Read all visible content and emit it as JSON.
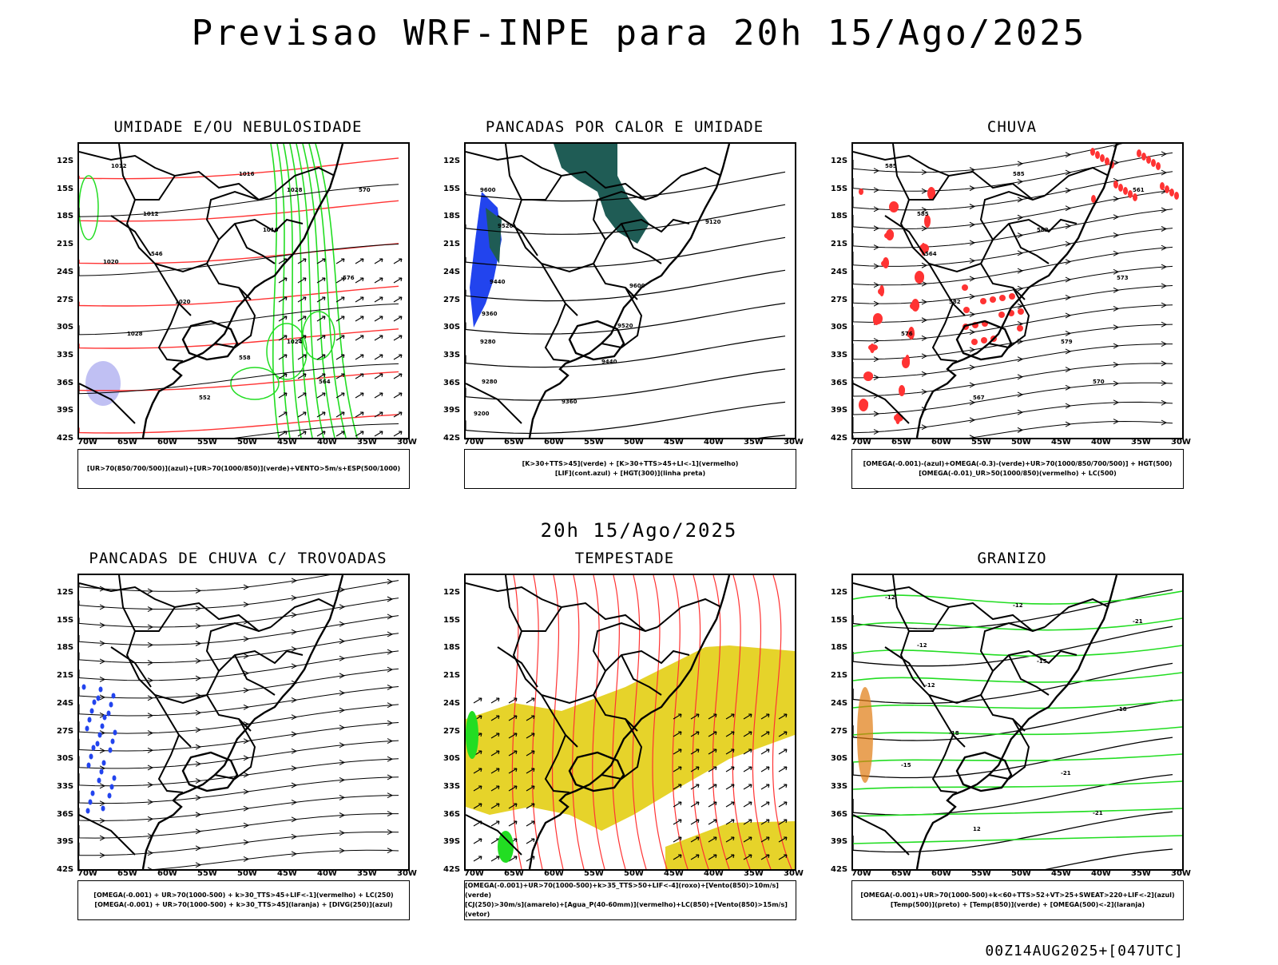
{
  "title": "Previsao WRF-INPE  para 20h 15/Ago/2025",
  "mid_time": "20h 15/Ago/2025",
  "footer": "00Z14AUG2025+[047UTC]",
  "axes": {
    "lat_labels": [
      "12S",
      "15S",
      "18S",
      "21S",
      "24S",
      "27S",
      "30S",
      "33S",
      "36S",
      "39S",
      "42S"
    ],
    "lon_labels": [
      "70W",
      "65W",
      "60W",
      "55W",
      "50W",
      "45W",
      "40W",
      "35W",
      "30W"
    ]
  },
  "colors": {
    "black": "#000000",
    "red": "#ff3333",
    "green": "#22dd22",
    "blue": "#2244ee",
    "lightblue": "#b0b0f0",
    "yellow": "#e6d32a",
    "darkteal": "#1f5c55",
    "orange": "#e07a10"
  },
  "chart_data": [
    {
      "type": "heatmap",
      "title": "UMIDADE E/OU NEBULOSIDADE",
      "legend_lines": [
        "[UR>70(850/700/500)](azul)+[UR>70(1000/850)](verde)+VENTO>5m/s+ESP(500/1000)"
      ],
      "labels": [
        "1012",
        "1012",
        "1016",
        "1016",
        "1020",
        "1024",
        "1028",
        "576",
        "564",
        "552",
        "546",
        "570",
        "558",
        "1020",
        "1028"
      ]
    },
    {
      "type": "heatmap",
      "title": "PANCADAS POR CALOR E UMIDADE",
      "legend_lines": [
        "[K>30+TTS>45](verde) + [K>30+TTS>45+LI<-1](vermelho)",
        "[LIF](cont.azul) + [HGT(300)](linha preta)"
      ],
      "labels": [
        "9600",
        "9520",
        "9440",
        "9360",
        "9280",
        "9200",
        "9120",
        "9600",
        "9520",
        "9440",
        "9360",
        "9280"
      ]
    },
    {
      "type": "heatmap",
      "title": "CHUVA",
      "legend_lines": [
        "[OMEGA(-0.001)-(azul)+OMEGA(-0.3)-(verde)+UR>70(1000/850/700/500)] + HGT(500)",
        "[OMEGA(-0.01)_UR>50(1000/850)(vermelho) + LC(500)"
      ],
      "labels": [
        "585",
        "585",
        "585",
        "582",
        "582",
        "579",
        "576",
        "573",
        "570",
        "567",
        "564",
        "561"
      ]
    },
    {
      "type": "heatmap",
      "title": "PANCADAS DE CHUVA C/ TROVOADAS",
      "legend_lines": [
        "[OMEGA(-0.001) + UR>70(1000-500) + k>30_TTS>45+LIF<-1](vermelho) + LC(250)",
        "[OMEGA(-0.001) + UR>70(1000-500) + k>30_TTS>45](laranja) + [DIVG(250)](azul)"
      ],
      "labels": []
    },
    {
      "type": "heatmap",
      "title": "TEMPESTADE",
      "legend_lines": [
        "[OMEGA(-0.001)+UR>70(1000-500)+k>35_TTS>50+LIF<-4](roxo)+[Vento(850)>10m/s](verde)",
        "[CJ(250)>30m/s](amarelo)+[Agua_P(40-60mm)](vermelho)+LC(850)+[Vento(850)>15m/s](vetor)"
      ],
      "labels": []
    },
    {
      "type": "heatmap",
      "title": "GRANIZO",
      "legend_lines": [
        "[OMEGA(-0.001)+UR>70(1000-500)+k<60+TTS>52+VT>25+SWEAT>220+LIF<-2](azul)",
        "[Temp(500)](preto) + [Temp(850)](verde) + [OMEGA(500)<-2](laranja)"
      ],
      "labels": [
        "-12",
        "-12",
        "-12",
        "-15",
        "-18",
        "-21",
        "-15",
        "-18",
        "-21",
        "12",
        "-12",
        "-21"
      ]
    }
  ]
}
